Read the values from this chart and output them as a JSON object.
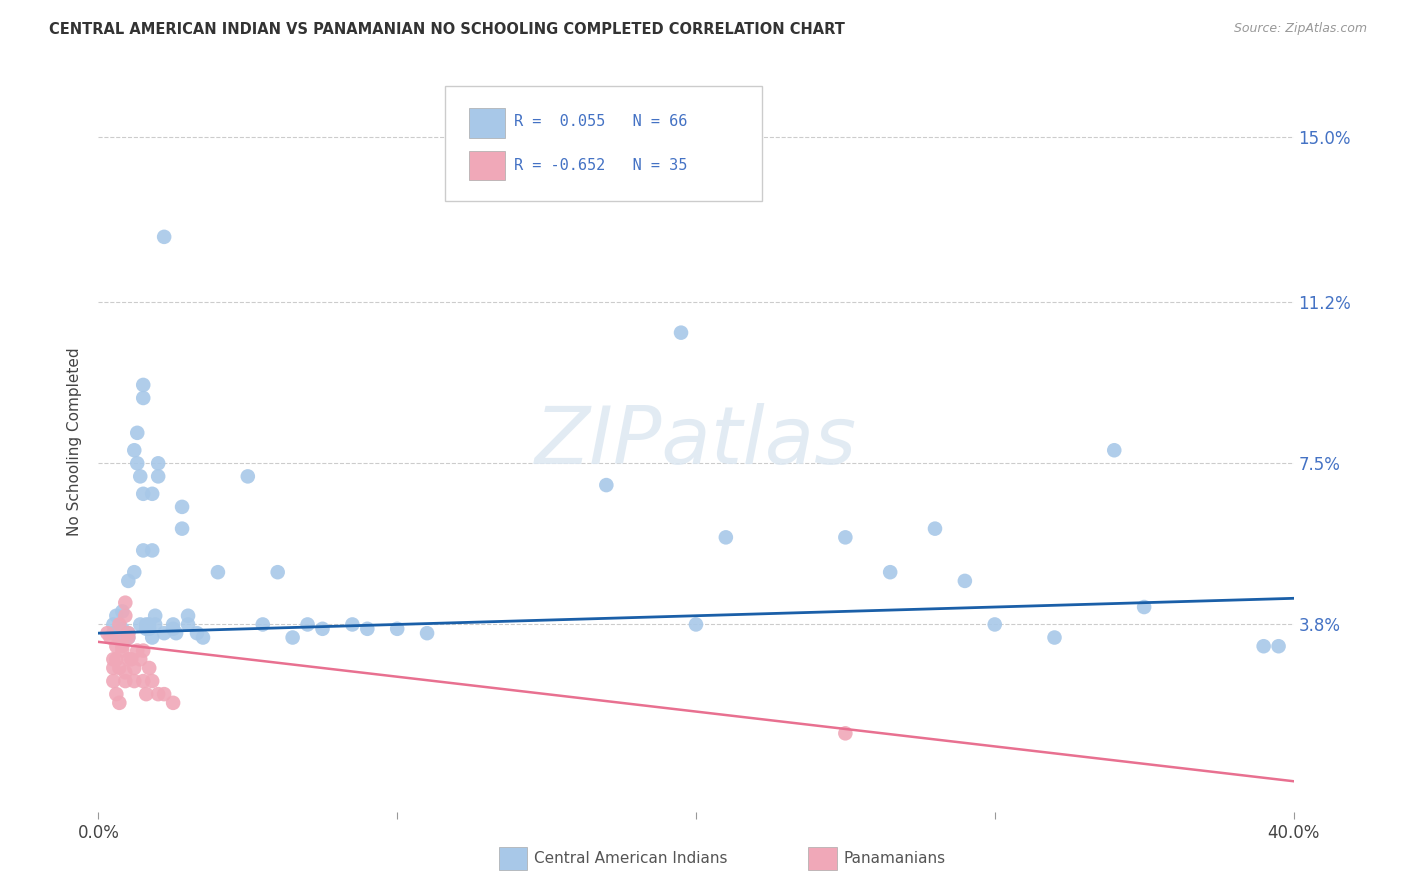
{
  "title": "CENTRAL AMERICAN INDIAN VS PANAMANIAN NO SCHOOLING COMPLETED CORRELATION CHART",
  "source": "Source: ZipAtlas.com",
  "ylabel": "No Schooling Completed",
  "ytick_labels": [
    "3.8%",
    "7.5%",
    "11.2%",
    "15.0%"
  ],
  "ytick_values": [
    0.038,
    0.075,
    0.112,
    0.15
  ],
  "xlim": [
    0.0,
    0.4
  ],
  "ylim": [
    -0.005,
    0.165
  ],
  "blue_color": "#a8c8e8",
  "pink_color": "#f0a8b8",
  "blue_line_color": "#1a5fa8",
  "pink_line_color": "#e87090",
  "blue_scatter": [
    [
      0.005,
      0.038
    ],
    [
      0.005,
      0.036
    ],
    [
      0.006,
      0.04
    ],
    [
      0.007,
      0.035
    ],
    [
      0.008,
      0.037
    ],
    [
      0.008,
      0.041
    ],
    [
      0.01,
      0.036
    ],
    [
      0.01,
      0.035
    ],
    [
      0.01,
      0.048
    ],
    [
      0.012,
      0.05
    ],
    [
      0.012,
      0.078
    ],
    [
      0.013,
      0.082
    ],
    [
      0.013,
      0.075
    ],
    [
      0.014,
      0.072
    ],
    [
      0.014,
      0.038
    ],
    [
      0.015,
      0.055
    ],
    [
      0.015,
      0.068
    ],
    [
      0.015,
      0.09
    ],
    [
      0.015,
      0.093
    ],
    [
      0.016,
      0.037
    ],
    [
      0.016,
      0.038
    ],
    [
      0.017,
      0.038
    ],
    [
      0.017,
      0.037
    ],
    [
      0.018,
      0.035
    ],
    [
      0.018,
      0.055
    ],
    [
      0.018,
      0.068
    ],
    [
      0.019,
      0.04
    ],
    [
      0.019,
      0.038
    ],
    [
      0.02,
      0.075
    ],
    [
      0.02,
      0.072
    ],
    [
      0.022,
      0.127
    ],
    [
      0.022,
      0.036
    ],
    [
      0.025,
      0.038
    ],
    [
      0.025,
      0.037
    ],
    [
      0.026,
      0.036
    ],
    [
      0.028,
      0.06
    ],
    [
      0.028,
      0.065
    ],
    [
      0.03,
      0.038
    ],
    [
      0.03,
      0.04
    ],
    [
      0.033,
      0.036
    ],
    [
      0.035,
      0.035
    ],
    [
      0.04,
      0.05
    ],
    [
      0.05,
      0.072
    ],
    [
      0.055,
      0.038
    ],
    [
      0.06,
      0.05
    ],
    [
      0.065,
      0.035
    ],
    [
      0.07,
      0.038
    ],
    [
      0.075,
      0.037
    ],
    [
      0.085,
      0.038
    ],
    [
      0.09,
      0.037
    ],
    [
      0.1,
      0.037
    ],
    [
      0.11,
      0.036
    ],
    [
      0.17,
      0.07
    ],
    [
      0.195,
      0.105
    ],
    [
      0.2,
      0.038
    ],
    [
      0.21,
      0.058
    ],
    [
      0.25,
      0.058
    ],
    [
      0.265,
      0.05
    ],
    [
      0.28,
      0.06
    ],
    [
      0.29,
      0.048
    ],
    [
      0.3,
      0.038
    ],
    [
      0.32,
      0.035
    ],
    [
      0.34,
      0.078
    ],
    [
      0.35,
      0.042
    ],
    [
      0.39,
      0.033
    ],
    [
      0.395,
      0.033
    ]
  ],
  "pink_scatter": [
    [
      0.003,
      0.036
    ],
    [
      0.004,
      0.035
    ],
    [
      0.005,
      0.028
    ],
    [
      0.005,
      0.025
    ],
    [
      0.005,
      0.03
    ],
    [
      0.006,
      0.022
    ],
    [
      0.006,
      0.033
    ],
    [
      0.006,
      0.03
    ],
    [
      0.007,
      0.028
    ],
    [
      0.007,
      0.02
    ],
    [
      0.007,
      0.038
    ],
    [
      0.008,
      0.035
    ],
    [
      0.008,
      0.033
    ],
    [
      0.008,
      0.032
    ],
    [
      0.009,
      0.025
    ],
    [
      0.009,
      0.027
    ],
    [
      0.009,
      0.04
    ],
    [
      0.009,
      0.043
    ],
    [
      0.01,
      0.036
    ],
    [
      0.01,
      0.035
    ],
    [
      0.01,
      0.03
    ],
    [
      0.011,
      0.03
    ],
    [
      0.012,
      0.028
    ],
    [
      0.012,
      0.025
    ],
    [
      0.013,
      0.032
    ],
    [
      0.014,
      0.03
    ],
    [
      0.015,
      0.025
    ],
    [
      0.015,
      0.032
    ],
    [
      0.016,
      0.022
    ],
    [
      0.017,
      0.028
    ],
    [
      0.018,
      0.025
    ],
    [
      0.02,
      0.022
    ],
    [
      0.022,
      0.022
    ],
    [
      0.025,
      0.02
    ],
    [
      0.25,
      0.013
    ]
  ],
  "blue_trend_x": [
    0.0,
    0.4
  ],
  "blue_trend_y": [
    0.036,
    0.044
  ],
  "pink_trend_x": [
    0.0,
    0.4
  ],
  "pink_trend_y": [
    0.034,
    0.002
  ]
}
